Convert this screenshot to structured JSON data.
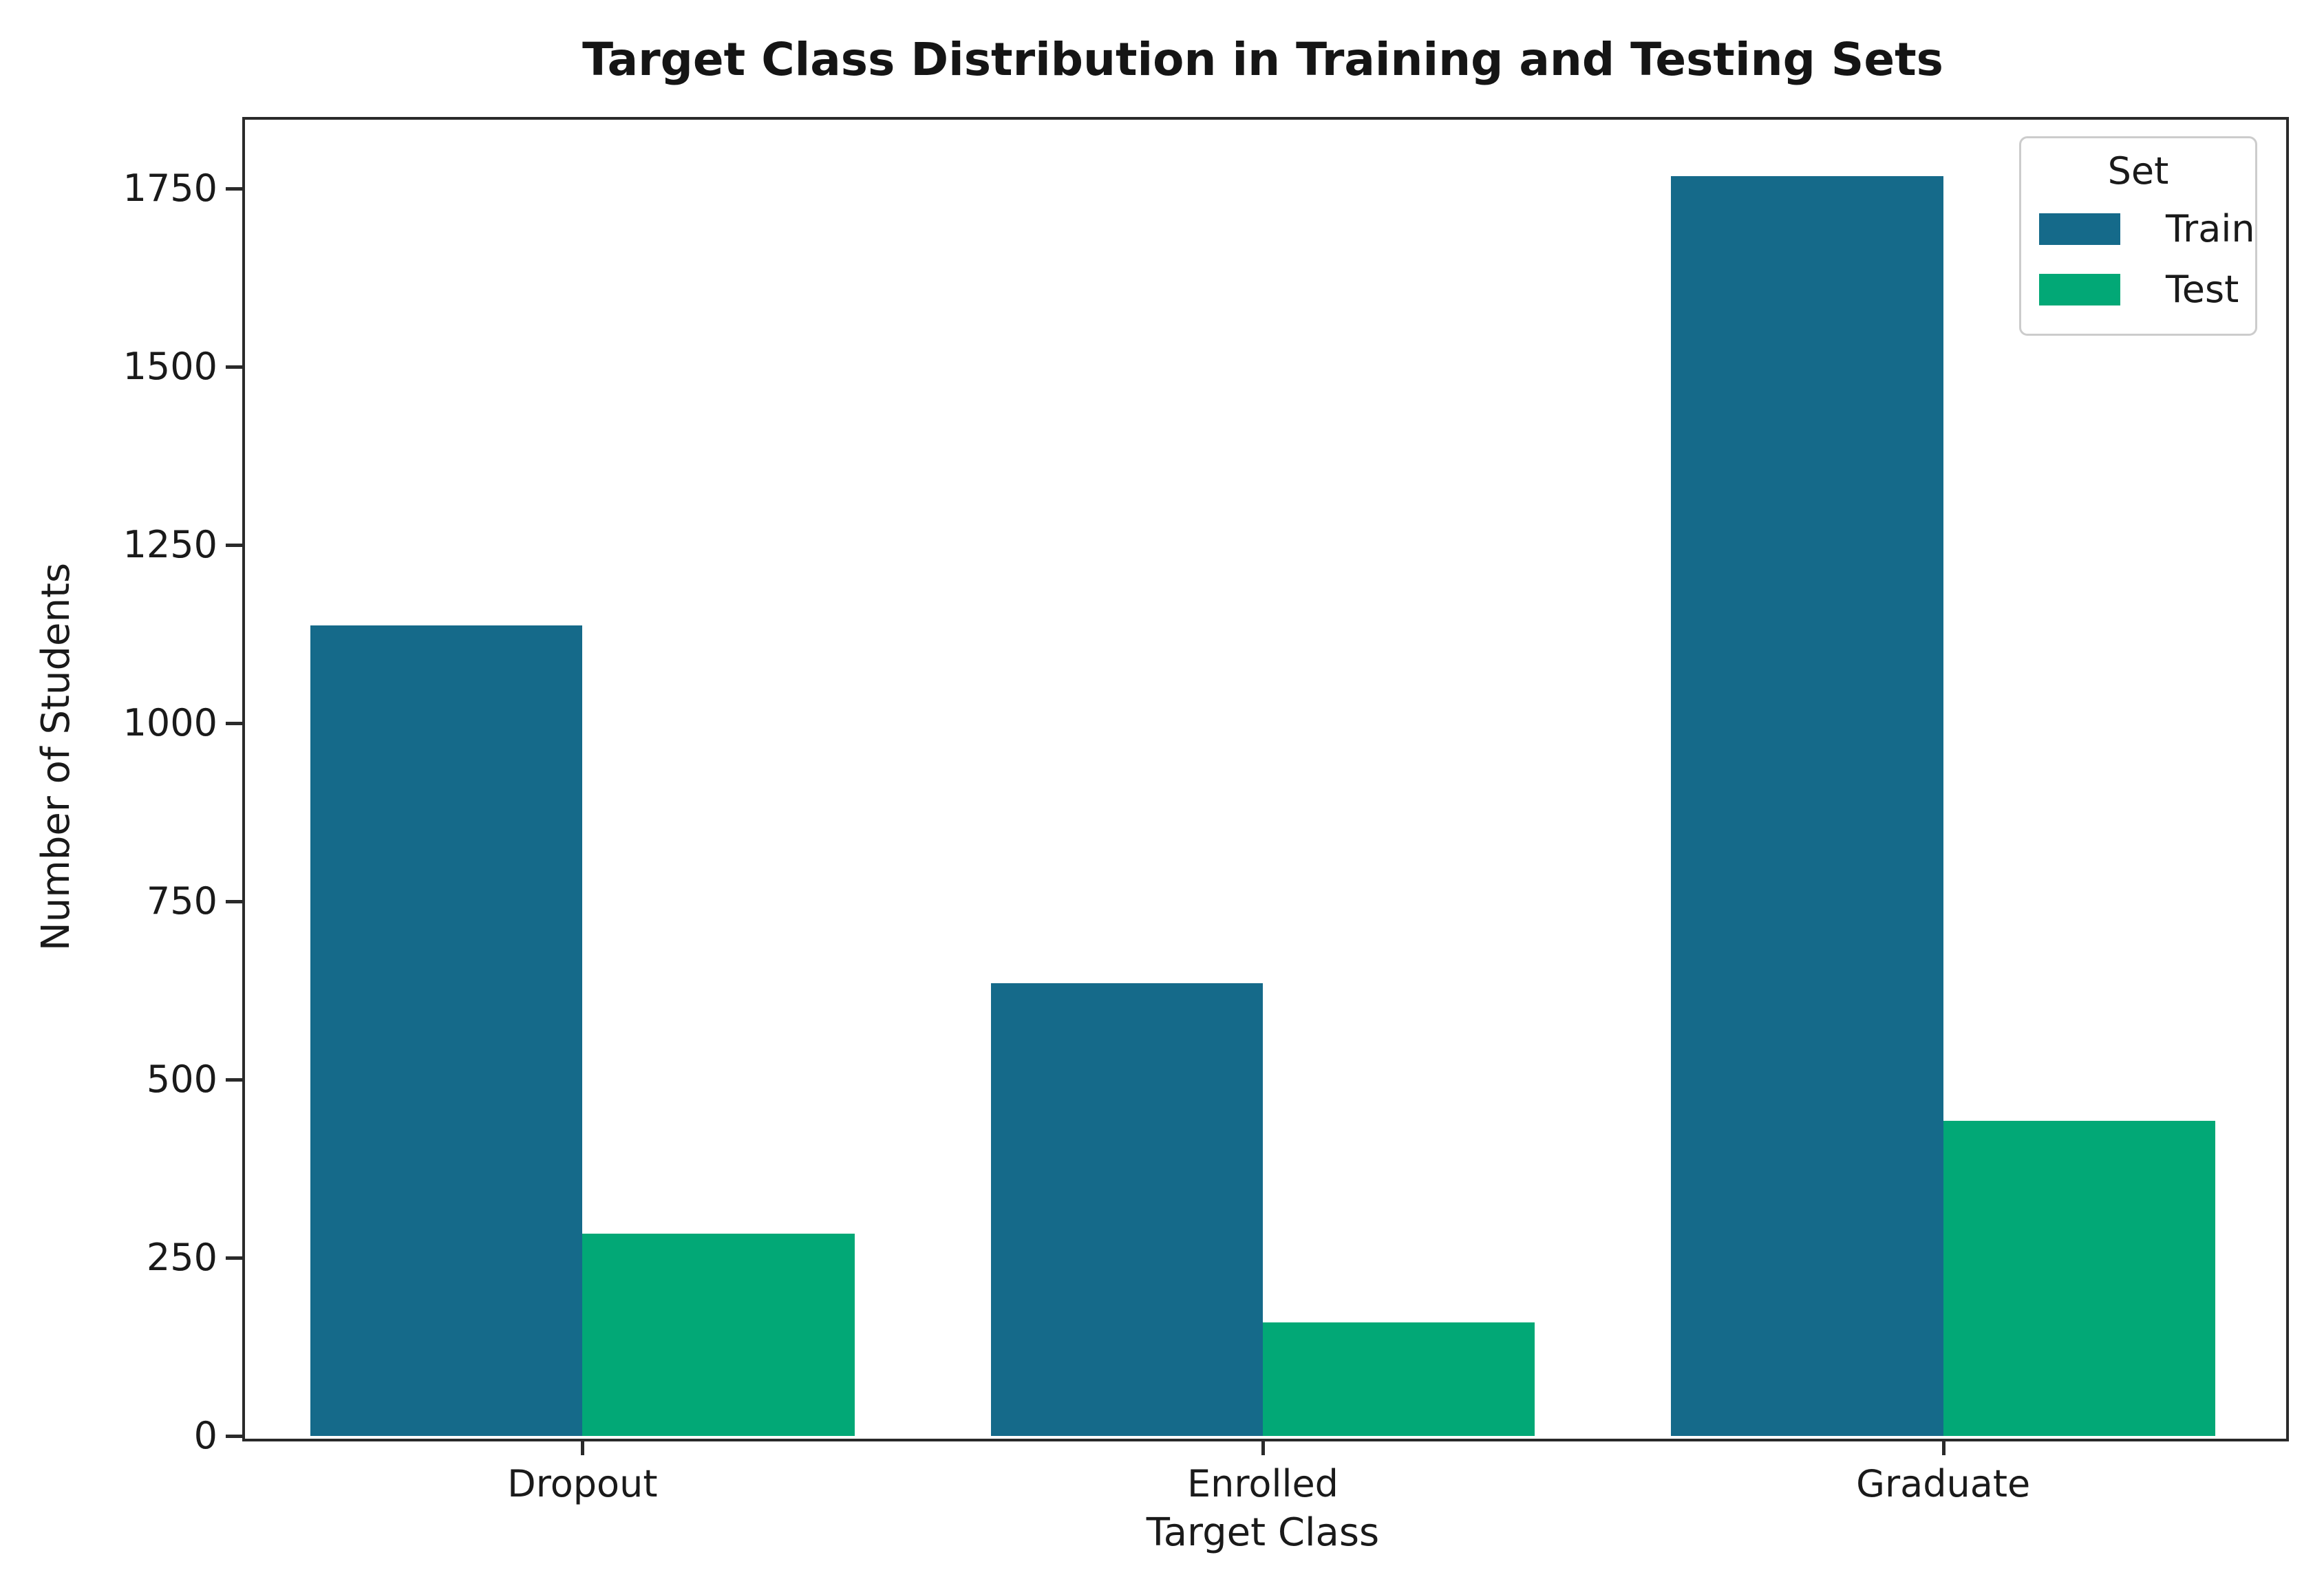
{
  "figure": {
    "background": "#ffffff",
    "spine_color": "#2a2a2a",
    "text_color": "#1a1a1a"
  },
  "chart_data": {
    "type": "bar",
    "title": "Target Class Distribution in Training and Testing Sets",
    "xlabel": "Target Class",
    "ylabel": "Number of Students",
    "categories": [
      "Dropout",
      "Enrolled",
      "Graduate"
    ],
    "series": [
      {
        "name": "Train",
        "color": "#156a8a",
        "values": [
          1137,
          635,
          1767
        ]
      },
      {
        "name": "Test",
        "color": "#02a876",
        "values": [
          284,
          159,
          442
        ]
      }
    ],
    "ylim": [
      0,
      1850
    ],
    "yticks": [
      0,
      250,
      500,
      750,
      1000,
      1250,
      1500,
      1750
    ],
    "grid": false,
    "legend": {
      "title": "Set",
      "position": "upper right",
      "entries": [
        "Train",
        "Test"
      ]
    }
  }
}
